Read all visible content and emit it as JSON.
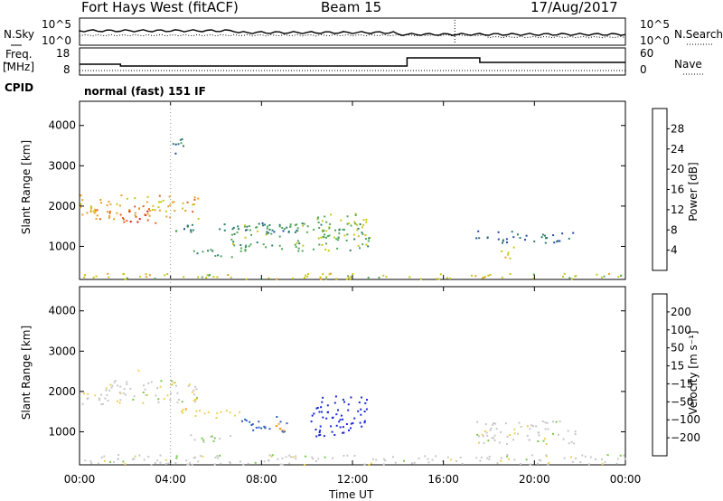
{
  "header": {
    "site": "Fort Hays West (fitACF)",
    "beam": "Beam 15",
    "date": "17/Aug/2017"
  },
  "top_panels": {
    "nsky_label": "N.Sky",
    "nsearch_label": "N.Search",
    "freq_label_1": "Freq.",
    "freq_label_2": "[MHz]",
    "nave_label": "Nave",
    "cpid_label": "CPID",
    "noise_ticks_left": [
      "10^5",
      "10^0"
    ],
    "noise_ticks_right": [
      "10^5",
      "10^0"
    ],
    "freq_ticks": [
      "18",
      "8"
    ],
    "nave_ticks": [
      "60",
      "0"
    ],
    "cpid_text": "normal (fast) 151 IF"
  },
  "chart_data": [
    {
      "type": "heatmap",
      "title": "",
      "xlabel": "Time UT",
      "ylabel": "Slant Range [km]",
      "x_ticks": [
        "00:00",
        "04:00",
        "08:00",
        "12:00",
        "16:00",
        "20:00",
        "00:00"
      ],
      "xlim_hours": [
        0,
        24
      ],
      "y_ticks": [
        "1000",
        "2000",
        "3000",
        "4000"
      ],
      "ylim": [
        180,
        4600
      ],
      "colorbar": {
        "label": "Power [dB]",
        "ticks": [
          "4",
          "8",
          "12",
          "16",
          "20",
          "24",
          "28"
        ],
        "colors": [
          "#0a1fd8",
          "#2448a8",
          "#2c7d6e",
          "#52a85a",
          "#c8c81a",
          "#e7a12a",
          "#e4601a",
          "#e01a10"
        ]
      },
      "series": [
        {
          "t_start": 0.0,
          "t_end": 24.0,
          "range_low": 200,
          "range_high": 350,
          "value": 18
        },
        {
          "t_start": 0.0,
          "t_end": 5.2,
          "range_low": 1700,
          "range_high": 2300,
          "value": 22
        },
        {
          "t_start": 1.6,
          "t_end": 3.4,
          "range_low": 1600,
          "range_high": 1950,
          "value": 28
        },
        {
          "t_start": 3.8,
          "t_end": 4.6,
          "range_low": 3300,
          "range_high": 3700,
          "value": 10
        },
        {
          "t_start": 4.2,
          "t_end": 9.6,
          "range_low": 1350,
          "range_high": 1600,
          "value": 10
        },
        {
          "t_start": 4.8,
          "t_end": 6.8,
          "range_low": 750,
          "range_high": 950,
          "value": 12
        },
        {
          "t_start": 6.6,
          "t_end": 12.8,
          "range_low": 900,
          "range_high": 1600,
          "value": 14
        },
        {
          "t_start": 10.4,
          "t_end": 12.6,
          "range_low": 1200,
          "range_high": 1850,
          "value": 16
        },
        {
          "t_start": 17.4,
          "t_end": 21.8,
          "range_low": 1100,
          "range_high": 1400,
          "value": 9
        },
        {
          "t_start": 18.4,
          "t_end": 19.2,
          "range_low": 700,
          "range_high": 1000,
          "value": 18
        }
      ]
    },
    {
      "type": "heatmap",
      "title": "",
      "xlabel": "Time UT",
      "ylabel": "Slant Range [km]",
      "x_ticks": [
        "00:00",
        "04:00",
        "08:00",
        "12:00",
        "16:00",
        "20:00",
        "00:00"
      ],
      "xlim_hours": [
        0,
        24
      ],
      "y_ticks": [
        "1000",
        "2000",
        "3000",
        "4000"
      ],
      "ylim": [
        180,
        4600
      ],
      "colorbar": {
        "label": "Velocity [m s⁻¹]",
        "ticks": [
          "200",
          "100",
          "50",
          "15",
          "−15",
          "−50",
          "−100",
          "−200"
        ],
        "colors": [
          "#1a2ad8",
          "#2d5fc0",
          "#2f8a4e",
          "#7cc84a",
          "#c8c8c8",
          "#f0d050",
          "#f5a020",
          "#f06010",
          "#e01818"
        ]
      },
      "series": [
        {
          "t_start": 0.0,
          "t_end": 24.0,
          "range_low": 200,
          "range_high": 450,
          "value": 0
        },
        {
          "t_start": 0.0,
          "t_end": 5.2,
          "range_low": 1700,
          "range_high": 2300,
          "value": 0
        },
        {
          "t_start": 2.4,
          "t_end": 2.8,
          "range_low": 2500,
          "range_high": 2650,
          "value": -60
        },
        {
          "t_start": 4.3,
          "t_end": 7.0,
          "range_low": 1350,
          "range_high": 1600,
          "value": -40
        },
        {
          "t_start": 4.8,
          "t_end": 7.0,
          "range_low": 750,
          "range_high": 950,
          "value": 10
        },
        {
          "t_start": 7.0,
          "t_end": 9.2,
          "range_low": 1000,
          "range_high": 1400,
          "value": 150
        },
        {
          "t_start": 8.6,
          "t_end": 9.4,
          "range_low": 1000,
          "range_high": 1300,
          "value": -80
        },
        {
          "t_start": 10.0,
          "t_end": 12.6,
          "range_low": 900,
          "range_high": 1900,
          "value": 220
        },
        {
          "t_start": 17.4,
          "t_end": 21.8,
          "range_low": 700,
          "range_high": 1300,
          "value": 0
        }
      ]
    }
  ]
}
